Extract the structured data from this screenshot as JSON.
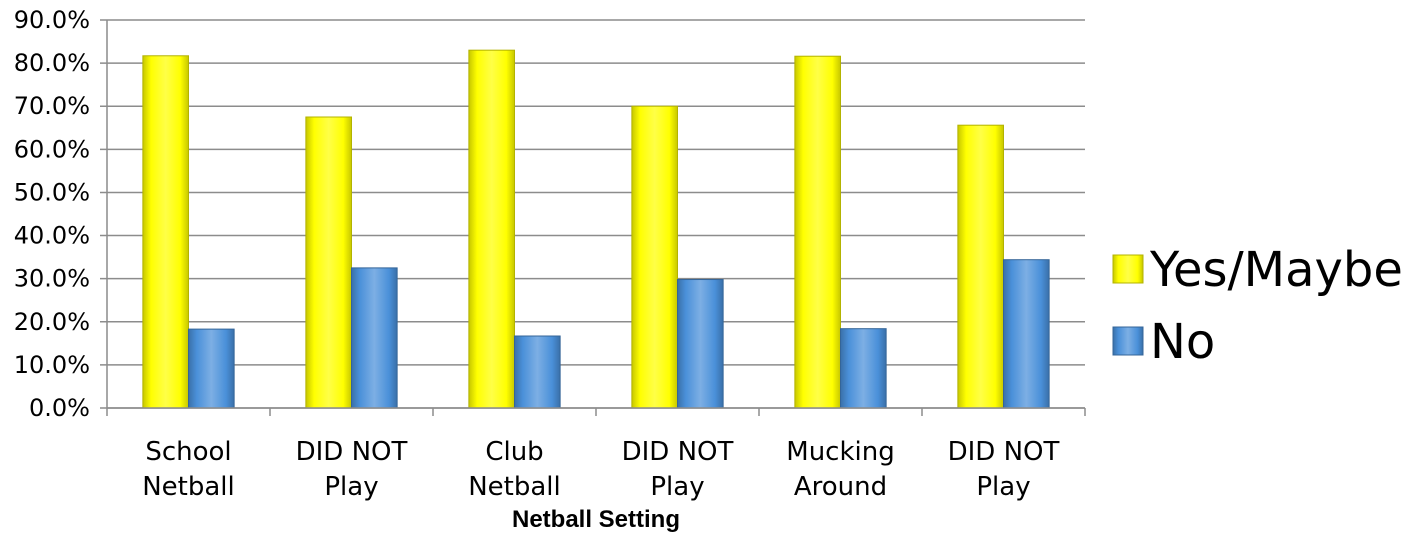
{
  "chart_data": {
    "type": "bar",
    "categories": [
      [
        "School",
        "Netball"
      ],
      [
        "DID NOT",
        "Play"
      ],
      [
        "Club",
        "Netball"
      ],
      [
        "DID NOT",
        "Play"
      ],
      [
        "Mucking",
        "Around"
      ],
      [
        "DID NOT",
        "Play"
      ]
    ],
    "series": [
      {
        "name": "Yes/Maybe",
        "color": "#FFFF00",
        "values": [
          81.7,
          67.5,
          83.0,
          70.0,
          81.6,
          65.6
        ]
      },
      {
        "name": "No",
        "color": "#4A90D9",
        "values": [
          18.3,
          32.5,
          16.7,
          29.8,
          18.4,
          34.4
        ]
      }
    ],
    "xlabel": "Netball Setting",
    "ylim": [
      0,
      90
    ],
    "yticks": [
      0,
      10,
      20,
      30,
      40,
      50,
      60,
      70,
      80,
      90
    ],
    "ytick_labels": [
      "0.0%",
      "10.0%",
      "20.0%",
      "30.0%",
      "40.0%",
      "50.0%",
      "60.0%",
      "70.0%",
      "80.0%",
      "90.0%"
    ],
    "grid": true,
    "legend": "right"
  }
}
